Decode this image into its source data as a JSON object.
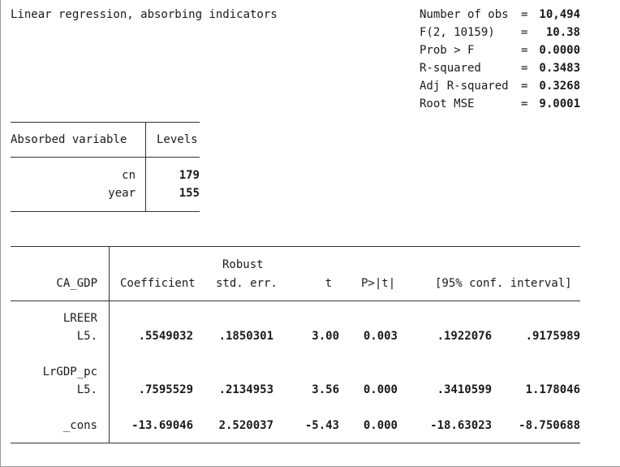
{
  "title": "Linear regression, absorbing indicators",
  "stats": [
    {
      "label": "Number of obs",
      "eq": "=",
      "value": "10,494"
    },
    {
      "label": "F(2, 10159)",
      "eq": "=",
      "value": "10.38"
    },
    {
      "label": "Prob > F",
      "eq": "=",
      "value": "0.0000"
    },
    {
      "label": "R-squared",
      "eq": "=",
      "value": "0.3483"
    },
    {
      "label": "Adj R-squared",
      "eq": "=",
      "value": "0.3268"
    },
    {
      "label": "Root MSE",
      "eq": "=",
      "value": "9.0001"
    }
  ],
  "absorbed": {
    "header_var": "Absorbed variable",
    "header_levels": "Levels",
    "rows": [
      {
        "name": "cn",
        "levels": "179"
      },
      {
        "name": "year",
        "levels": "155"
      }
    ]
  },
  "regression": {
    "depvar": "CA_GDP",
    "headers": {
      "coef": "Coefficient",
      "se_top": "Robust",
      "se": "std. err.",
      "t": "t",
      "p": "P>|t|",
      "ci": "[95% conf. interval]"
    },
    "groups": [
      {
        "name": "LREER",
        "lag": "L5.",
        "coef": ".5549032",
        "se": ".1850301",
        "t": "3.00",
        "p": "0.003",
        "ci_lo": ".1922076",
        "ci_hi": ".9175989"
      },
      {
        "name": "LrGDP_pc",
        "lag": "L5.",
        "coef": ".7595529",
        "se": ".2134953",
        "t": "3.56",
        "p": "0.000",
        "ci_lo": ".3410599",
        "ci_hi": "1.178046"
      }
    ],
    "cons": {
      "name": "_cons",
      "coef": "-13.69046",
      "se": "2.520037",
      "t": "-5.43",
      "p": "0.000",
      "ci_lo": "-18.63023",
      "ci_hi": "-8.750688"
    }
  }
}
